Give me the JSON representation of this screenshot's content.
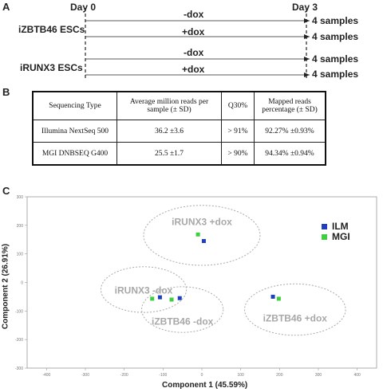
{
  "panels": [
    "A",
    "B",
    "C"
  ],
  "timeline": {
    "day0": "Day 0",
    "day3": "Day 3",
    "cell_lines": [
      "iZBTB46 ESCs",
      "iRUNX3 ESCs"
    ],
    "conditions": [
      "-dox",
      "+dox",
      "-dox",
      "+dox"
    ],
    "samples": [
      "4 samples",
      "4 samples",
      "4 samples",
      "4 samples"
    ]
  },
  "table": {
    "headers": [
      "Sequencing Type",
      "Average million reads per sample (± SD)",
      "Q30%",
      "Mapped reads percentage (± SD)"
    ],
    "rows": [
      [
        "Illumina NextSeq 500",
        "36.2 ±3.6",
        "> 91%",
        "92.27% ±0.93%"
      ],
      [
        "MGI DNBSEQ G400",
        "25.5 ±1.7",
        "> 90%",
        "94.34% ±0.94%"
      ]
    ]
  },
  "chart_data": {
    "type": "scatter",
    "xlabel": "Component 1 (45.59%)",
    "ylabel": "Component 2 (26.91%)",
    "xlim": [
      -450,
      450
    ],
    "ylim": [
      -300,
      300
    ],
    "x_ticks": [
      -400,
      -300,
      -200,
      -100,
      0,
      100,
      200,
      300,
      400
    ],
    "y_ticks": [
      300,
      200,
      100,
      0,
      -100,
      -200,
      -300
    ],
    "legend_position": "top-right",
    "series": [
      {
        "name": "ILM",
        "color": "#1f3fbf",
        "points": [
          [
            5,
            145
          ],
          [
            -108,
            -52
          ],
          [
            -57,
            -55
          ],
          [
            183,
            -50
          ]
        ]
      },
      {
        "name": "MGI",
        "color": "#3ecf3e",
        "points": [
          [
            -10,
            168
          ],
          [
            -128,
            -57
          ],
          [
            -78,
            -60
          ],
          [
            198,
            -57
          ]
        ]
      }
    ],
    "groups": [
      {
        "label": "iRUNX3 +dox",
        "cx": 0,
        "cy": 165,
        "rx": 150,
        "ry": 105
      },
      {
        "label": "iRUNX3 -dox",
        "cx": -150,
        "cy": -25,
        "rx": 110,
        "ry": 80
      },
      {
        "label": "iZBTB46 -dox",
        "cx": -50,
        "cy": -95,
        "rx": 105,
        "ry": 80
      },
      {
        "label": "iZBTB46 +dox",
        "cx": 240,
        "cy": -95,
        "rx": 130,
        "ry": 90
      }
    ]
  },
  "colors": {
    "ellipse": "#aaaaaa",
    "group_label": "#a8a8a8",
    "axis": "#888888"
  }
}
